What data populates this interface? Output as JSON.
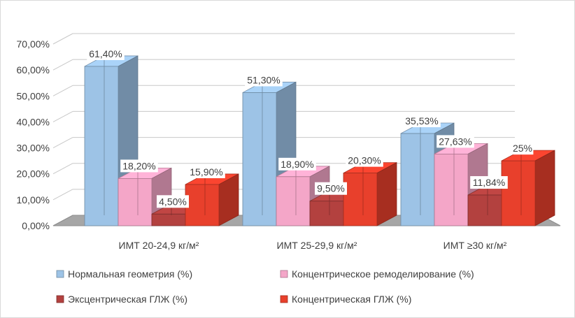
{
  "chart_data": {
    "type": "bar",
    "categories": [
      "ИМТ 20-24,9 кг/м²",
      "ИМТ 25-29,9 кг/м²",
      "ИМТ ≥30 кг/м²"
    ],
    "series": [
      {
        "name": "Нормальная геометрия (%)",
        "values": [
          61.4,
          51.3,
          35.53
        ],
        "labels": [
          "61,40%",
          "51,30%",
          "35,53%"
        ],
        "color": "#9dc3e6"
      },
      {
        "name": "Концентрическое ремоделирование (%)",
        "values": [
          18.2,
          18.9,
          27.63
        ],
        "labels": [
          "18,20%",
          "18,90%",
          "27,63%"
        ],
        "color": "#f4a6c8"
      },
      {
        "name": "Эксцентрическая ГЛЖ (%)",
        "values": [
          4.5,
          9.5,
          11.84
        ],
        "labels": [
          "4,50%",
          "9,50%",
          "11,84%"
        ],
        "color": "#b3413f"
      },
      {
        "name": "Концентрическая ГЛЖ (%)",
        "values": [
          15.9,
          20.3,
          25.0
        ],
        "labels": [
          "15,90%",
          "20,30%",
          "25%"
        ],
        "color": "#e8402c"
      }
    ],
    "yticks": [
      "0,00%",
      "10,00%",
      "20,00%",
      "30,00%",
      "40,00%",
      "50,00%",
      "60,00%",
      "70,00%"
    ],
    "ylim": [
      0,
      70
    ],
    "grid": true,
    "legend_position": "bottom",
    "three_d": true
  }
}
